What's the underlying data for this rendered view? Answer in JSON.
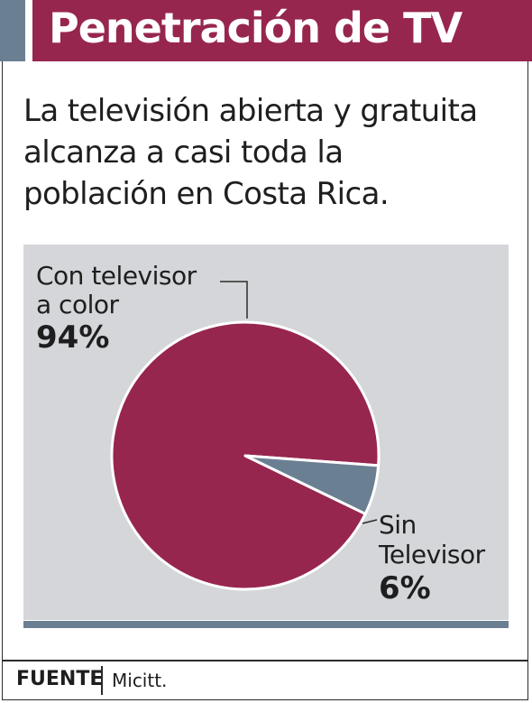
{
  "header": {
    "title": "Penetración de TV"
  },
  "subtitle_lines": [
    "La televisión abierta y gratuita",
    "alcanza a casi toda la",
    "población en Costa Rica."
  ],
  "chart_data": {
    "type": "pie",
    "slices": [
      {
        "label_lines": [
          "Con televisor",
          "a color"
        ],
        "value": 94,
        "value_label": "94%",
        "color": "#97264f"
      },
      {
        "label_lines": [
          "Sin",
          "Televisor"
        ],
        "value": 6,
        "value_label": "6%",
        "color": "#6b7f93"
      }
    ],
    "background_color": "#d4d6d9"
  },
  "footer": {
    "source_label": "FUENTE",
    "source_value": "Micitt."
  },
  "colors": {
    "accent": "#97264f",
    "secondary": "#6b7f93"
  }
}
